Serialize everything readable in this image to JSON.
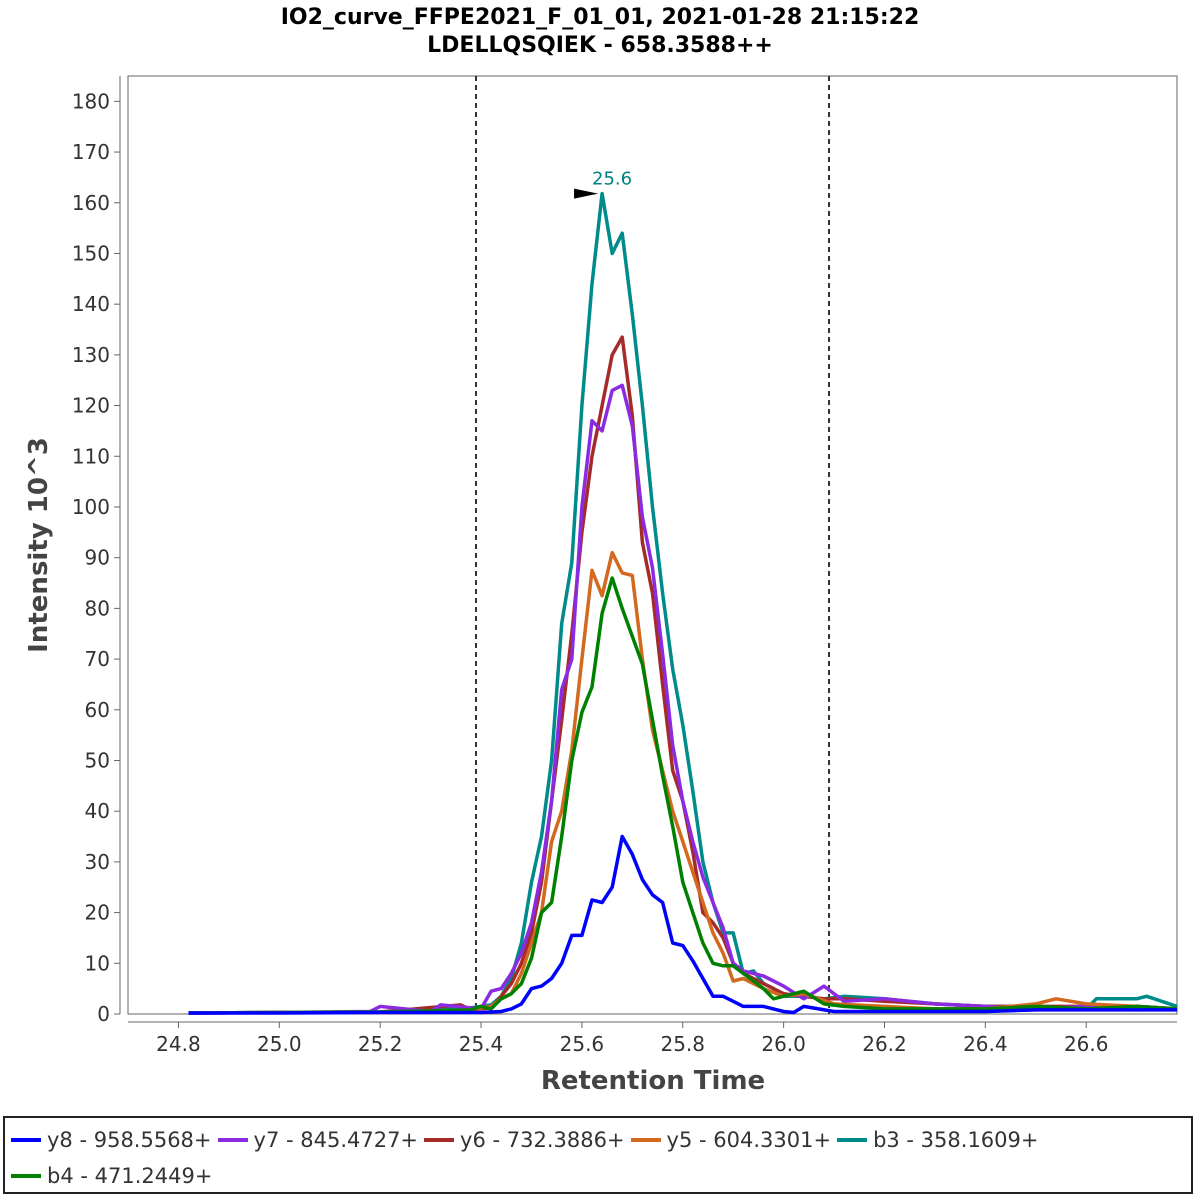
{
  "chart_data": {
    "type": "line",
    "title": "IO2_curve_FFPE2021_F_01_01, 2021-01-28 21:15:22",
    "subtitle": "LDELLQSQIEK - 658.3588++",
    "xlabel": "Retention Time",
    "ylabel": "Intensity 10^3",
    "xlim": [
      24.7,
      26.78
    ],
    "ylim": [
      0,
      185
    ],
    "xticks": [
      "24.8",
      "25.0",
      "25.2",
      "25.4",
      "25.6",
      "25.8",
      "26.0",
      "26.2",
      "26.4",
      "26.6"
    ],
    "xtick_values": [
      24.8,
      25.0,
      25.2,
      25.4,
      25.6,
      25.8,
      26.0,
      26.2,
      26.4,
      26.6
    ],
    "yticks": [
      "0",
      "10",
      "20",
      "30",
      "40",
      "50",
      "60",
      "70",
      "80",
      "90",
      "100",
      "110",
      "120",
      "130",
      "140",
      "150",
      "160",
      "170",
      "180"
    ],
    "ytick_values": [
      0,
      10,
      20,
      30,
      40,
      50,
      60,
      70,
      80,
      90,
      100,
      110,
      120,
      130,
      140,
      150,
      160,
      170,
      180
    ],
    "integration_boundaries": [
      25.39,
      26.09
    ],
    "peak_annotation": {
      "x": 25.64,
      "y": 161.8,
      "label": "25.6",
      "color": "#008080"
    },
    "series": [
      {
        "name": "b3 - 358.1609+",
        "color": "#008b8b",
        "x": [
          24.82,
          25.0,
          25.2,
          25.3,
          25.38,
          25.42,
          25.44,
          25.46,
          25.48,
          25.5,
          25.52,
          25.54,
          25.56,
          25.58,
          25.6,
          25.62,
          25.64,
          25.66,
          25.68,
          25.7,
          25.72,
          25.74,
          25.76,
          25.78,
          25.8,
          25.82,
          25.84,
          25.86,
          25.88,
          25.9,
          25.92,
          25.94,
          25.96,
          25.98,
          26.0,
          26.04,
          26.08,
          26.12,
          26.2,
          26.3,
          26.4,
          26.5,
          26.6,
          26.62,
          26.7,
          26.72,
          26.78
        ],
        "values": [
          0.2,
          0.3,
          0.4,
          0.8,
          1.2,
          1.8,
          3.5,
          7.0,
          14.0,
          26.0,
          35.0,
          50.0,
          77.0,
          89.0,
          120.0,
          144.0,
          161.8,
          150.0,
          154.0,
          138.0,
          120.0,
          100.0,
          83.0,
          68.0,
          57.0,
          44.0,
          30.0,
          22.0,
          16.0,
          16.0,
          8.0,
          8.5,
          6.0,
          5.0,
          3.5,
          3.5,
          3.0,
          3.5,
          3.0,
          2.0,
          1.5,
          1.5,
          1.0,
          3.0,
          3.0,
          3.5,
          1.5
        ]
      },
      {
        "name": "y6 - 732.3886+",
        "color": "#a52a2a",
        "x": [
          24.82,
          25.0,
          25.2,
          25.36,
          25.38,
          25.42,
          25.44,
          25.46,
          25.48,
          25.5,
          25.52,
          25.54,
          25.56,
          25.58,
          25.6,
          25.62,
          25.64,
          25.66,
          25.68,
          25.7,
          25.72,
          25.74,
          25.76,
          25.78,
          25.8,
          25.82,
          25.84,
          25.86,
          25.88,
          25.9,
          25.92,
          25.96,
          26.0,
          26.04,
          26.08,
          26.12,
          26.2,
          26.3,
          26.4,
          26.5,
          26.6,
          26.7,
          26.78
        ],
        "values": [
          0.2,
          0.3,
          0.4,
          1.8,
          0.8,
          1.2,
          3.5,
          6.0,
          10.0,
          16.0,
          26.0,
          42.0,
          58.0,
          75.0,
          95.0,
          110.0,
          120.0,
          130.0,
          133.5,
          118.0,
          93.0,
          83.0,
          65.0,
          48.0,
          42.0,
          32.0,
          20.0,
          18.0,
          15.0,
          10.0,
          8.0,
          6.0,
          4.0,
          3.5,
          3.0,
          3.0,
          2.5,
          2.0,
          1.5,
          1.5,
          1.5,
          1.5,
          1.0
        ]
      },
      {
        "name": "y7 - 845.4727+",
        "color": "#8a2be2",
        "x": [
          24.82,
          25.0,
          25.18,
          25.2,
          25.3,
          25.32,
          25.4,
          25.42,
          25.44,
          25.46,
          25.48,
          25.5,
          25.52,
          25.54,
          25.56,
          25.58,
          25.6,
          25.62,
          25.64,
          25.66,
          25.68,
          25.7,
          25.72,
          25.74,
          25.76,
          25.78,
          25.8,
          25.82,
          25.84,
          25.86,
          25.88,
          25.9,
          25.92,
          25.96,
          26.0,
          26.04,
          26.08,
          26.12,
          26.2,
          26.3,
          26.4,
          26.5,
          26.6,
          26.7,
          26.78
        ],
        "values": [
          0.2,
          0.3,
          0.5,
          1.5,
          0.5,
          1.8,
          1.0,
          4.5,
          5.0,
          8.0,
          12.0,
          18.0,
          28.0,
          42.0,
          64.0,
          70.0,
          100.0,
          117.0,
          115.0,
          123.0,
          124.0,
          116.0,
          98.0,
          88.0,
          71.0,
          53.0,
          42.0,
          34.0,
          27.0,
          22.0,
          17.0,
          10.0,
          8.5,
          7.5,
          5.5,
          3.0,
          5.5,
          2.5,
          3.0,
          2.0,
          1.5,
          1.0,
          1.5,
          1.5,
          1.0
        ]
      },
      {
        "name": "y5 - 604.3301+",
        "color": "#d2691e",
        "x": [
          24.82,
          25.0,
          25.2,
          25.38,
          25.42,
          25.44,
          25.46,
          25.48,
          25.5,
          25.52,
          25.54,
          25.56,
          25.58,
          25.6,
          25.62,
          25.64,
          25.66,
          25.68,
          25.7,
          25.72,
          25.74,
          25.76,
          25.78,
          25.8,
          25.82,
          25.84,
          25.86,
          25.88,
          25.9,
          25.92,
          25.96,
          26.0,
          26.04,
          26.1,
          26.2,
          26.3,
          26.4,
          26.5,
          26.54,
          26.6,
          26.7,
          26.78
        ],
        "values": [
          0.2,
          0.3,
          0.3,
          0.8,
          1.5,
          3.0,
          4.0,
          8.0,
          14.0,
          20.0,
          34.0,
          40.0,
          52.0,
          70.0,
          87.5,
          82.5,
          91.0,
          87.0,
          86.5,
          70.0,
          56.0,
          48.0,
          40.0,
          34.0,
          28.0,
          22.0,
          16.0,
          12.0,
          6.5,
          7.0,
          5.0,
          3.5,
          4.0,
          2.0,
          1.5,
          1.0,
          1.0,
          2.0,
          3.0,
          2.0,
          1.5,
          1.0
        ]
      },
      {
        "name": "b4 - 471.2449+",
        "color": "#008000",
        "x": [
          24.82,
          25.0,
          25.2,
          25.38,
          25.4,
          25.42,
          25.44,
          25.46,
          25.48,
          25.5,
          25.52,
          25.54,
          25.56,
          25.58,
          25.6,
          25.62,
          25.64,
          25.66,
          25.68,
          25.7,
          25.72,
          25.74,
          25.76,
          25.78,
          25.8,
          25.82,
          25.84,
          25.86,
          25.88,
          25.9,
          25.92,
          25.94,
          25.96,
          25.98,
          26.0,
          26.04,
          26.08,
          26.12,
          26.2,
          26.3,
          26.4,
          26.5,
          26.6,
          26.7,
          26.78
        ],
        "values": [
          0.2,
          0.3,
          0.4,
          0.8,
          1.5,
          1.0,
          3.0,
          4.0,
          6.0,
          11.0,
          20.0,
          22.0,
          35.0,
          50.0,
          59.5,
          64.5,
          79.0,
          86.0,
          80.0,
          74.5,
          69.0,
          58.0,
          47.0,
          37.0,
          26.0,
          20.0,
          14.0,
          10.0,
          9.5,
          9.5,
          8.0,
          6.5,
          5.0,
          3.0,
          3.5,
          4.5,
          2.0,
          1.5,
          1.0,
          1.0,
          1.0,
          1.5,
          1.0,
          1.5,
          1.0
        ]
      },
      {
        "name": "y8 - 958.5568+",
        "color": "#0000ff",
        "x": [
          24.82,
          25.0,
          25.2,
          25.4,
          25.44,
          25.46,
          25.48,
          25.5,
          25.52,
          25.54,
          25.56,
          25.58,
          25.6,
          25.62,
          25.64,
          25.66,
          25.68,
          25.7,
          25.72,
          25.74,
          25.76,
          25.78,
          25.8,
          25.82,
          25.84,
          25.86,
          25.88,
          25.9,
          25.92,
          25.94,
          25.96,
          25.98,
          26.0,
          26.02,
          26.04,
          26.1,
          26.2,
          26.3,
          26.4,
          26.5,
          26.6,
          26.7,
          26.78
        ],
        "values": [
          0.2,
          0.2,
          0.3,
          0.3,
          0.5,
          1.0,
          2.0,
          5.0,
          5.5,
          7.0,
          10.0,
          15.5,
          15.5,
          22.5,
          22.0,
          25.0,
          35.0,
          31.5,
          26.5,
          23.5,
          22.0,
          14.0,
          13.5,
          10.5,
          7.0,
          3.5,
          3.5,
          2.5,
          1.5,
          1.5,
          1.5,
          1.0,
          0.5,
          0.3,
          1.5,
          0.5,
          0.5,
          0.5,
          0.5,
          0.8,
          0.8,
          0.8,
          0.8
        ]
      }
    ]
  },
  "legend": {
    "items": [
      {
        "label": "y8 - 958.5568+",
        "color": "#0000ff"
      },
      {
        "label": "y7 - 845.4727+",
        "color": "#8a2be2"
      },
      {
        "label": "y6 - 732.3886+",
        "color": "#a52a2a"
      },
      {
        "label": "y5 - 604.3301+",
        "color": "#d2691e"
      },
      {
        "label": "b3 - 358.1609+",
        "color": "#008b8b"
      },
      {
        "label": "b4 - 471.2449+",
        "color": "#008000"
      }
    ]
  }
}
